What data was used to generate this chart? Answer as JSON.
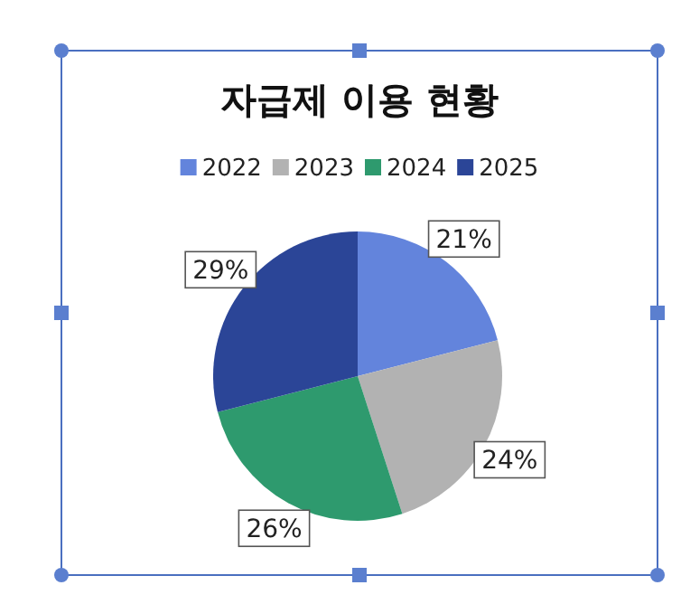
{
  "chart_data": {
    "type": "pie",
    "title": "자급제 이용 현황",
    "categories": [
      "2022",
      "2023",
      "2024",
      "2025"
    ],
    "values": [
      21,
      24,
      26,
      29
    ],
    "colors": [
      "#6384dc",
      "#b2b2b2",
      "#2e9a6e",
      "#2b4597"
    ],
    "value_labels": [
      "21%",
      "24%",
      "26%",
      "29%"
    ],
    "legend": "top"
  }
}
